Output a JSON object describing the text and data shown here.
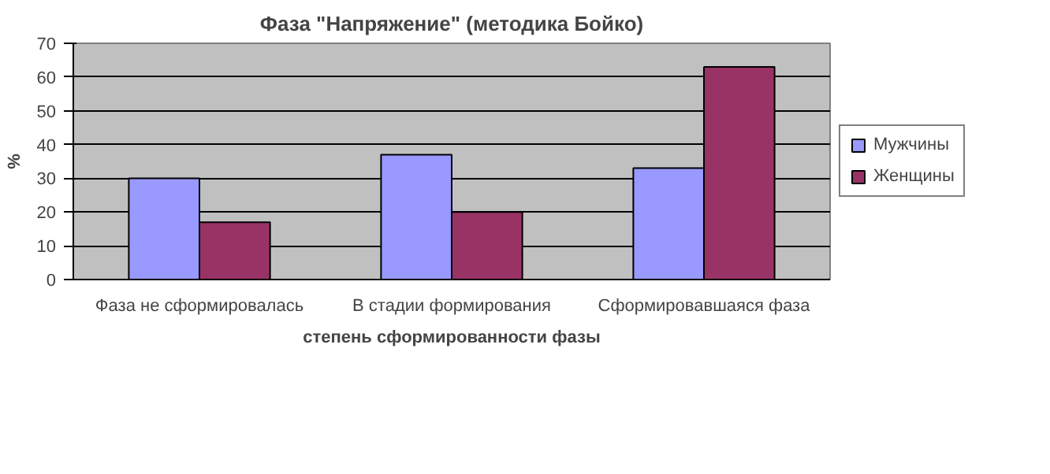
{
  "chart_data": {
    "type": "bar",
    "title": "Фаза \"Напряжение\" (методика Бойко)",
    "xlabel": "степень сформированности фазы",
    "ylabel": "%",
    "categories": [
      "Фаза не сформировалась",
      "В стадии формирования",
      "Сформировавшаяся фаза"
    ],
    "series": [
      {
        "name": "Мужчины",
        "color": "#9999ff",
        "values": [
          30,
          37,
          33
        ]
      },
      {
        "name": "Женщины",
        "color": "#993366",
        "values": [
          17,
          20,
          63
        ]
      }
    ],
    "ylim": [
      0,
      70
    ],
    "yticks": [
      0,
      10,
      20,
      30,
      40,
      50,
      60,
      70
    ],
    "grid": "y",
    "legend": "right"
  }
}
